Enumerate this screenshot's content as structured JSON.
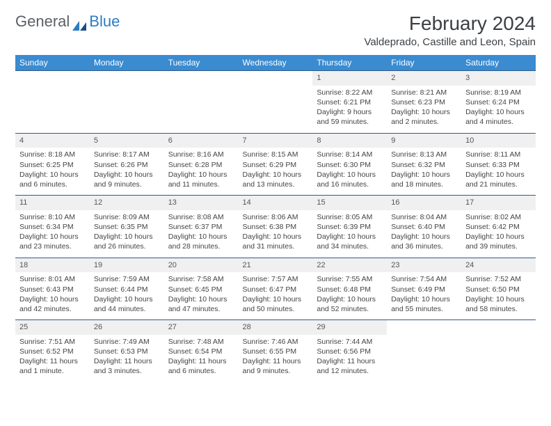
{
  "brand": {
    "general": "General",
    "blue": "Blue"
  },
  "title": {
    "month": "February 2024",
    "location": "Valdeprado, Castille and Leon, Spain"
  },
  "colors": {
    "header_bg": "#3a8bd0",
    "header_text": "#ffffff",
    "row_border": "#2e5a8a",
    "daynum_bg": "#f0f0f0",
    "brand_gray": "#5b5f66",
    "brand_blue": "#2e7cc2"
  },
  "weekdays": [
    "Sunday",
    "Monday",
    "Tuesday",
    "Wednesday",
    "Thursday",
    "Friday",
    "Saturday"
  ],
  "weeks": [
    [
      null,
      null,
      null,
      null,
      {
        "d": "1",
        "sr": "Sunrise: 8:22 AM",
        "ss": "Sunset: 6:21 PM",
        "dl": "Daylight: 9 hours and 59 minutes."
      },
      {
        "d": "2",
        "sr": "Sunrise: 8:21 AM",
        "ss": "Sunset: 6:23 PM",
        "dl": "Daylight: 10 hours and 2 minutes."
      },
      {
        "d": "3",
        "sr": "Sunrise: 8:19 AM",
        "ss": "Sunset: 6:24 PM",
        "dl": "Daylight: 10 hours and 4 minutes."
      }
    ],
    [
      {
        "d": "4",
        "sr": "Sunrise: 8:18 AM",
        "ss": "Sunset: 6:25 PM",
        "dl": "Daylight: 10 hours and 6 minutes."
      },
      {
        "d": "5",
        "sr": "Sunrise: 8:17 AM",
        "ss": "Sunset: 6:26 PM",
        "dl": "Daylight: 10 hours and 9 minutes."
      },
      {
        "d": "6",
        "sr": "Sunrise: 8:16 AM",
        "ss": "Sunset: 6:28 PM",
        "dl": "Daylight: 10 hours and 11 minutes."
      },
      {
        "d": "7",
        "sr": "Sunrise: 8:15 AM",
        "ss": "Sunset: 6:29 PM",
        "dl": "Daylight: 10 hours and 13 minutes."
      },
      {
        "d": "8",
        "sr": "Sunrise: 8:14 AM",
        "ss": "Sunset: 6:30 PM",
        "dl": "Daylight: 10 hours and 16 minutes."
      },
      {
        "d": "9",
        "sr": "Sunrise: 8:13 AM",
        "ss": "Sunset: 6:32 PM",
        "dl": "Daylight: 10 hours and 18 minutes."
      },
      {
        "d": "10",
        "sr": "Sunrise: 8:11 AM",
        "ss": "Sunset: 6:33 PM",
        "dl": "Daylight: 10 hours and 21 minutes."
      }
    ],
    [
      {
        "d": "11",
        "sr": "Sunrise: 8:10 AM",
        "ss": "Sunset: 6:34 PM",
        "dl": "Daylight: 10 hours and 23 minutes."
      },
      {
        "d": "12",
        "sr": "Sunrise: 8:09 AM",
        "ss": "Sunset: 6:35 PM",
        "dl": "Daylight: 10 hours and 26 minutes."
      },
      {
        "d": "13",
        "sr": "Sunrise: 8:08 AM",
        "ss": "Sunset: 6:37 PM",
        "dl": "Daylight: 10 hours and 28 minutes."
      },
      {
        "d": "14",
        "sr": "Sunrise: 8:06 AM",
        "ss": "Sunset: 6:38 PM",
        "dl": "Daylight: 10 hours and 31 minutes."
      },
      {
        "d": "15",
        "sr": "Sunrise: 8:05 AM",
        "ss": "Sunset: 6:39 PM",
        "dl": "Daylight: 10 hours and 34 minutes."
      },
      {
        "d": "16",
        "sr": "Sunrise: 8:04 AM",
        "ss": "Sunset: 6:40 PM",
        "dl": "Daylight: 10 hours and 36 minutes."
      },
      {
        "d": "17",
        "sr": "Sunrise: 8:02 AM",
        "ss": "Sunset: 6:42 PM",
        "dl": "Daylight: 10 hours and 39 minutes."
      }
    ],
    [
      {
        "d": "18",
        "sr": "Sunrise: 8:01 AM",
        "ss": "Sunset: 6:43 PM",
        "dl": "Daylight: 10 hours and 42 minutes."
      },
      {
        "d": "19",
        "sr": "Sunrise: 7:59 AM",
        "ss": "Sunset: 6:44 PM",
        "dl": "Daylight: 10 hours and 44 minutes."
      },
      {
        "d": "20",
        "sr": "Sunrise: 7:58 AM",
        "ss": "Sunset: 6:45 PM",
        "dl": "Daylight: 10 hours and 47 minutes."
      },
      {
        "d": "21",
        "sr": "Sunrise: 7:57 AM",
        "ss": "Sunset: 6:47 PM",
        "dl": "Daylight: 10 hours and 50 minutes."
      },
      {
        "d": "22",
        "sr": "Sunrise: 7:55 AM",
        "ss": "Sunset: 6:48 PM",
        "dl": "Daylight: 10 hours and 52 minutes."
      },
      {
        "d": "23",
        "sr": "Sunrise: 7:54 AM",
        "ss": "Sunset: 6:49 PM",
        "dl": "Daylight: 10 hours and 55 minutes."
      },
      {
        "d": "24",
        "sr": "Sunrise: 7:52 AM",
        "ss": "Sunset: 6:50 PM",
        "dl": "Daylight: 10 hours and 58 minutes."
      }
    ],
    [
      {
        "d": "25",
        "sr": "Sunrise: 7:51 AM",
        "ss": "Sunset: 6:52 PM",
        "dl": "Daylight: 11 hours and 1 minute."
      },
      {
        "d": "26",
        "sr": "Sunrise: 7:49 AM",
        "ss": "Sunset: 6:53 PM",
        "dl": "Daylight: 11 hours and 3 minutes."
      },
      {
        "d": "27",
        "sr": "Sunrise: 7:48 AM",
        "ss": "Sunset: 6:54 PM",
        "dl": "Daylight: 11 hours and 6 minutes."
      },
      {
        "d": "28",
        "sr": "Sunrise: 7:46 AM",
        "ss": "Sunset: 6:55 PM",
        "dl": "Daylight: 11 hours and 9 minutes."
      },
      {
        "d": "29",
        "sr": "Sunrise: 7:44 AM",
        "ss": "Sunset: 6:56 PM",
        "dl": "Daylight: 11 hours and 12 minutes."
      },
      null,
      null
    ]
  ]
}
